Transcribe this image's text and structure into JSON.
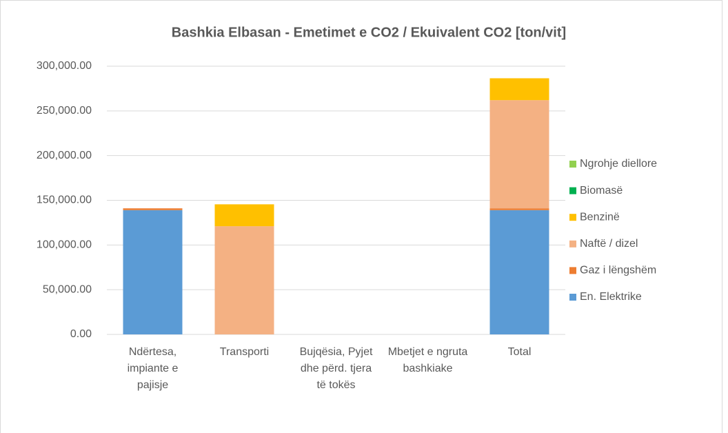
{
  "chart_data": {
    "type": "stacked_bar",
    "title": "Bashkia Elbasan - Emetimet e CO2 / Ekuivalent CO2 [ton/vit]",
    "categories": [
      "Ndërtesa, impiante e pajisje",
      "Transporti",
      "Bujqësia, Pyjet dhe përd. tjera të tokës",
      "Mbetjet e ngruta bashkiake",
      "Total"
    ],
    "series": [
      {
        "name": "En. Elektrike",
        "color": "#5b9bd5",
        "values": [
          139000,
          0,
          0,
          0,
          139000
        ]
      },
      {
        "name": "Gaz i lëngshëm",
        "color": "#ed7d31",
        "values": [
          2000,
          0,
          0,
          0,
          2000
        ]
      },
      {
        "name": "Naftë / dizel",
        "color": "#f4b183",
        "values": [
          0,
          121000,
          0,
          0,
          121000
        ]
      },
      {
        "name": "Benzinë",
        "color": "#ffc000",
        "values": [
          0,
          24500,
          0,
          0,
          24500
        ]
      },
      {
        "name": "Biomasë",
        "color": "#00b050",
        "values": [
          0,
          0,
          0,
          0,
          0
        ]
      },
      {
        "name": "Ngrohje diellore",
        "color": "#92d050",
        "values": [
          0,
          0,
          0,
          0,
          0
        ]
      }
    ],
    "ylim": [
      0,
      300000
    ],
    "yticks": [
      {
        "value": 0,
        "label": "0.00"
      },
      {
        "value": 50000,
        "label": "50,000.00"
      },
      {
        "value": 100000,
        "label": "100,000.00"
      },
      {
        "value": 150000,
        "label": "150,000.00"
      },
      {
        "value": 200000,
        "label": "200,000.00"
      },
      {
        "value": 250000,
        "label": "250,000.00"
      },
      {
        "value": 300000,
        "label": "300,000.00"
      }
    ],
    "grid": true,
    "legend": "right"
  }
}
